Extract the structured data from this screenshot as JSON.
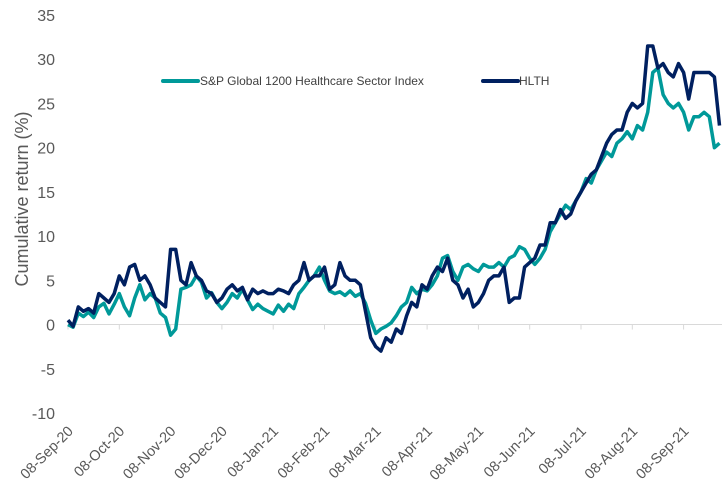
{
  "chart_data": {
    "type": "line",
    "title": "",
    "xlabel": "",
    "ylabel": "Cumulative return (%)",
    "ylim": [
      -10,
      35
    ],
    "yticks": [
      "35",
      "30",
      "25",
      "20",
      "15",
      "10",
      "5",
      "0",
      "-5",
      "-10"
    ],
    "ytick_values": [
      35,
      30,
      25,
      20,
      15,
      10,
      5,
      0,
      -5,
      -10
    ],
    "categories": [
      "08-Sep-20",
      "08-Oct-20",
      "08-Nov-20",
      "08-Dec-20",
      "08-Jan-21",
      "08-Feb-21",
      "08-Mar-21",
      "08-Apr-21",
      "08-May-21",
      "08-Jun-21",
      "08-Jul-21",
      "08-Aug-21",
      "08-Sep-21"
    ],
    "x_unit": "months since 08-Sep-20",
    "xlim": [
      0,
      12.7
    ],
    "grid": false,
    "legend_position": "top-center",
    "series": [
      {
        "name": "S&P Global 1200 Healthcare Sector Index",
        "color": "#009999",
        "x": [
          0,
          0.1,
          0.2,
          0.3,
          0.4,
          0.5,
          0.6,
          0.7,
          0.8,
          0.9,
          1.0,
          1.1,
          1.2,
          1.3,
          1.4,
          1.5,
          1.6,
          1.7,
          1.8,
          1.9,
          2.0,
          2.1,
          2.2,
          2.3,
          2.4,
          2.5,
          2.6,
          2.7,
          2.8,
          2.9,
          3.0,
          3.1,
          3.2,
          3.3,
          3.4,
          3.5,
          3.6,
          3.7,
          3.8,
          3.9,
          4.0,
          4.1,
          4.2,
          4.3,
          4.4,
          4.5,
          4.6,
          4.7,
          4.8,
          4.9,
          5.0,
          5.1,
          5.2,
          5.3,
          5.4,
          5.5,
          5.6,
          5.7,
          5.8,
          5.9,
          6.0,
          6.1,
          6.2,
          6.3,
          6.4,
          6.5,
          6.6,
          6.7,
          6.8,
          6.9,
          7.0,
          7.1,
          7.2,
          7.3,
          7.4,
          7.5,
          7.6,
          7.7,
          7.8,
          7.9,
          8.0,
          8.1,
          8.2,
          8.3,
          8.4,
          8.5,
          8.6,
          8.7,
          8.8,
          8.9,
          9.0,
          9.1,
          9.2,
          9.3,
          9.4,
          9.5,
          9.6,
          9.7,
          9.8,
          9.9,
          10.0,
          10.1,
          10.2,
          10.3,
          10.4,
          10.5,
          10.6,
          10.7,
          10.8,
          10.9,
          11.0,
          11.1,
          11.2,
          11.3,
          11.4,
          11.5,
          11.6,
          11.7,
          11.8,
          11.9,
          12.0,
          12.1,
          12.2,
          12.3,
          12.4,
          12.5,
          12.6,
          12.7
        ],
        "values": [
          0.0,
          -0.3,
          1.3,
          0.9,
          1.4,
          0.8,
          2.0,
          2.4,
          1.2,
          2.3,
          3.5,
          2.0,
          1.0,
          3.0,
          4.5,
          2.8,
          3.5,
          3.0,
          1.3,
          0.8,
          -1.2,
          -0.5,
          4.0,
          4.2,
          4.5,
          5.5,
          4.8,
          3.0,
          3.6,
          2.5,
          1.8,
          2.5,
          3.5,
          3.0,
          4.0,
          2.8,
          1.7,
          2.3,
          1.8,
          1.5,
          1.2,
          2.2,
          1.5,
          2.3,
          1.8,
          3.5,
          4.2,
          5.0,
          5.5,
          6.5,
          5.0,
          3.8,
          3.5,
          3.7,
          3.3,
          3.8,
          3.2,
          3.5,
          2.4,
          0.5,
          -1.0,
          -0.5,
          -0.2,
          0.2,
          1.0,
          2.0,
          2.5,
          4.2,
          3.5,
          4.0,
          3.8,
          4.5,
          5.5,
          7.5,
          7.8,
          6.0,
          5.0,
          6.5,
          6.8,
          6.3,
          6.0,
          6.8,
          6.5,
          6.5,
          7.0,
          6.5,
          7.5,
          7.8,
          8.8,
          8.5,
          7.5,
          6.8,
          7.5,
          8.5,
          10.5,
          11.5,
          12.5,
          13.5,
          13.0,
          14.0,
          15.0,
          16.5,
          16.0,
          17.5,
          18.5,
          19.5,
          19.0,
          20.5,
          21.0,
          21.8,
          21.0,
          22.5,
          22.0,
          24.0,
          28.5,
          29.0,
          26.0,
          25.0,
          24.5,
          25.0,
          24.0,
          22.0,
          23.5,
          23.5,
          24.0,
          23.5,
          20.0,
          20.5
        ]
      },
      {
        "name": "HLTH",
        "color": "#002060",
        "x": [
          0,
          0.1,
          0.2,
          0.3,
          0.4,
          0.5,
          0.6,
          0.7,
          0.8,
          0.9,
          1.0,
          1.1,
          1.2,
          1.3,
          1.4,
          1.5,
          1.6,
          1.7,
          1.8,
          1.9,
          2.0,
          2.1,
          2.2,
          2.3,
          2.4,
          2.5,
          2.6,
          2.7,
          2.8,
          2.9,
          3.0,
          3.1,
          3.2,
          3.3,
          3.4,
          3.5,
          3.6,
          3.7,
          3.8,
          3.9,
          4.0,
          4.1,
          4.2,
          4.3,
          4.4,
          4.5,
          4.6,
          4.7,
          4.8,
          4.9,
          5.0,
          5.1,
          5.2,
          5.3,
          5.4,
          5.5,
          5.6,
          5.7,
          5.8,
          5.9,
          6.0,
          6.1,
          6.2,
          6.3,
          6.4,
          6.5,
          6.6,
          6.7,
          6.8,
          6.9,
          7.0,
          7.1,
          7.2,
          7.3,
          7.4,
          7.5,
          7.6,
          7.7,
          7.8,
          7.9,
          8.0,
          8.1,
          8.2,
          8.3,
          8.4,
          8.5,
          8.6,
          8.7,
          8.8,
          8.9,
          9.0,
          9.1,
          9.2,
          9.3,
          9.4,
          9.5,
          9.6,
          9.7,
          9.8,
          9.9,
          10.0,
          10.1,
          10.2,
          10.3,
          10.4,
          10.5,
          10.6,
          10.7,
          10.8,
          10.9,
          11.0,
          11.1,
          11.2,
          11.3,
          11.4,
          11.5,
          11.6,
          11.7,
          11.8,
          11.9,
          12.0,
          12.1,
          12.2,
          12.3,
          12.4,
          12.5,
          12.6,
          12.7
        ],
        "values": [
          0.5,
          -0.2,
          2.0,
          1.5,
          1.8,
          1.3,
          3.5,
          3.0,
          2.5,
          3.5,
          5.5,
          4.5,
          6.5,
          6.8,
          5.0,
          5.5,
          4.5,
          3.0,
          2.5,
          2.0,
          8.5,
          8.5,
          5.0,
          4.5,
          7.0,
          5.5,
          5.0,
          3.8,
          3.5,
          2.5,
          3.0,
          4.0,
          4.5,
          3.8,
          4.2,
          2.8,
          4.0,
          3.5,
          3.8,
          3.5,
          3.5,
          4.0,
          3.8,
          3.5,
          4.5,
          5.0,
          7.0,
          5.0,
          5.5,
          5.5,
          6.5,
          4.0,
          4.5,
          7.0,
          5.5,
          5.0,
          5.0,
          4.5,
          1.5,
          -1.5,
          -2.5,
          -3.0,
          -1.5,
          -2.0,
          -0.5,
          -1.0,
          1.0,
          2.5,
          2.0,
          4.5,
          4.0,
          5.5,
          6.5,
          6.0,
          7.5,
          5.0,
          4.5,
          3.0,
          4.0,
          2.0,
          2.5,
          3.5,
          5.0,
          5.5,
          5.5,
          6.5,
          2.5,
          3.0,
          3.0,
          6.5,
          7.0,
          7.5,
          9.0,
          9.0,
          11.5,
          11.5,
          13.0,
          12.0,
          12.5,
          14.0,
          15.0,
          16.0,
          17.0,
          17.5,
          19.0,
          20.5,
          21.5,
          22.0,
          22.0,
          24.0,
          25.0,
          24.5,
          25.0,
          31.5,
          31.5,
          29.0,
          29.5,
          28.5,
          28.0,
          29.5,
          28.5,
          25.5,
          28.5,
          28.5,
          28.5,
          28.5,
          28.0,
          22.5
        ]
      }
    ]
  }
}
